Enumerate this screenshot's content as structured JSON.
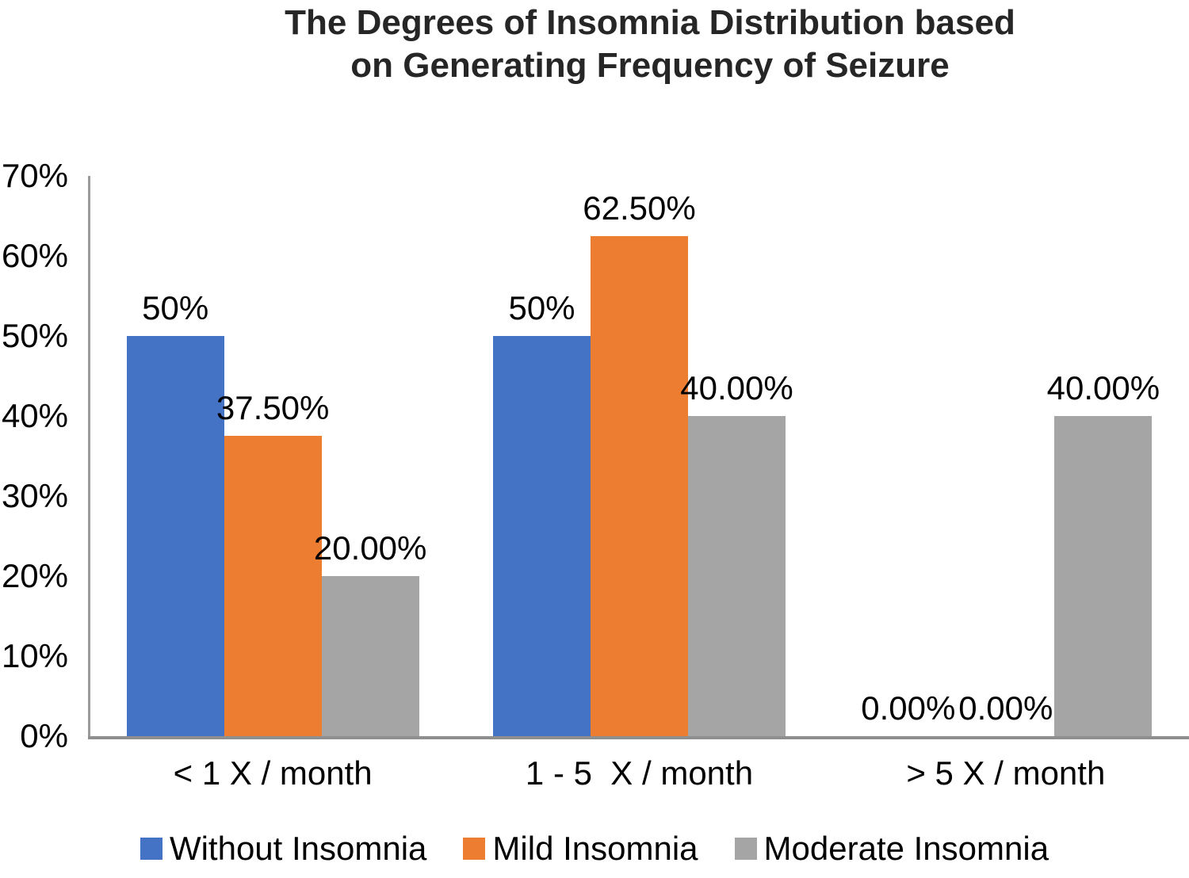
{
  "chart_data": {
    "type": "bar",
    "title": "The Degrees of Insomnia Distribution based\non Generating Frequency of Seizure",
    "categories": [
      "< 1 X / month",
      "1 - 5  X / month",
      "> 5 X / month"
    ],
    "series": [
      {
        "name": "Without Insomnia",
        "color": "#4472C4",
        "values": [
          50,
          50,
          0
        ],
        "data_labels": [
          "50%",
          "50%",
          "0.00%"
        ]
      },
      {
        "name": "Mild Insomnia",
        "color": "#ED7D31",
        "values": [
          37.5,
          62.5,
          0
        ],
        "data_labels": [
          "37.50%",
          "62.50%",
          "0.00%"
        ]
      },
      {
        "name": "Moderate Insomnia",
        "color": "#A5A5A5",
        "values": [
          20,
          40,
          40
        ],
        "data_labels": [
          "20.00%",
          "40.00%",
          "40.00%"
        ]
      }
    ],
    "y_axis": {
      "min": 0,
      "max": 70,
      "step": 10,
      "tick_labels": [
        "0%",
        "10%",
        "20%",
        "30%",
        "40%",
        "50%",
        "60%",
        "70%"
      ]
    },
    "xlabel": "",
    "ylabel": "",
    "grid": false,
    "legend_position": "bottom",
    "axis_color": "#9b9b9b",
    "text_color": "#000000",
    "title_color": "#262626"
  }
}
